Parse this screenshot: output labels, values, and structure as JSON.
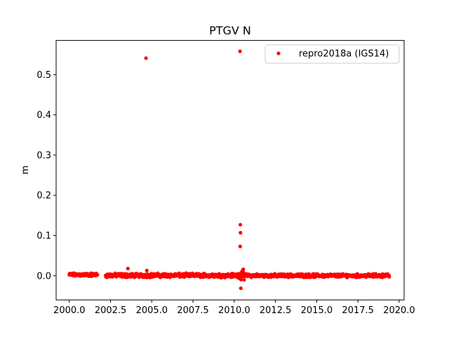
{
  "chart_data": {
    "type": "scatter",
    "title": "PTGV N",
    "xlabel": "",
    "ylabel": "m",
    "xlim": [
      1999.2,
      2020.3
    ],
    "ylim": [
      -0.06,
      0.585
    ],
    "xticks": [
      2000.0,
      2002.5,
      2005.0,
      2007.5,
      2010.0,
      2012.5,
      2015.0,
      2017.5,
      2020.0
    ],
    "xtick_labels": [
      "2000.0",
      "2002.5",
      "2005.0",
      "2007.5",
      "2010.0",
      "2012.5",
      "2015.0",
      "2017.5",
      "2020.0"
    ],
    "yticks": [
      0.0,
      0.1,
      0.2,
      0.3,
      0.4,
      0.5
    ],
    "ytick_labels": [
      "0.0",
      "0.1",
      "0.2",
      "0.3",
      "0.4",
      "0.5"
    ],
    "grid": false,
    "legend_position": "top-right",
    "series": [
      {
        "name": "repro2018a (IGS14)",
        "color": "#ff0000",
        "marker": "circle",
        "dense_segments": [
          {
            "x": [
              2000.0,
              2001.7
            ],
            "y_center": 0.0025,
            "spread": 0.005
          },
          {
            "x": [
              2002.2,
              2010.3
            ],
            "y_center": 0.001,
            "spread": 0.006
          },
          {
            "x": [
              2010.3,
              2010.7
            ],
            "y_center": 0.002,
            "spread": 0.012
          },
          {
            "x": [
              2010.7,
              2019.4
            ],
            "y_center": 0.0005,
            "spread": 0.005
          }
        ],
        "points": [
          {
            "x": 2004.65,
            "y": 0.541
          },
          {
            "x": 2010.35,
            "y": 0.558
          },
          {
            "x": 2010.37,
            "y": 0.127
          },
          {
            "x": 2010.38,
            "y": 0.107
          },
          {
            "x": 2010.36,
            "y": 0.073
          },
          {
            "x": 2003.55,
            "y": 0.018
          },
          {
            "x": 2010.55,
            "y": 0.016
          },
          {
            "x": 2010.4,
            "y": -0.031
          },
          {
            "x": 2004.7,
            "y": 0.013
          },
          {
            "x": 2010.6,
            "y": -0.01
          }
        ]
      }
    ]
  }
}
